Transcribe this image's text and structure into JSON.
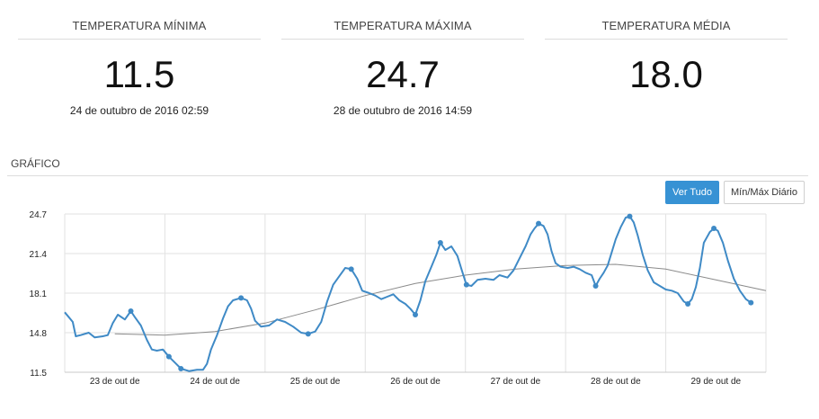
{
  "stats": [
    {
      "title": "TEMPERATURA MÍNIMA",
      "value": "11.5",
      "subtitle": "24 de outubro de 2016 02:59"
    },
    {
      "title": "TEMPERATURA MÁXIMA",
      "value": "24.7",
      "subtitle": "28 de outubro de 2016 14:59"
    },
    {
      "title": "TEMPERATURA MÉDIA",
      "value": "18.0",
      "subtitle": ""
    }
  ],
  "section": {
    "title": "GRÁFICO"
  },
  "buttons": {
    "all": "Ver Tudo",
    "daily": "Mín/Máx Diário"
  },
  "colors": {
    "series": "#3f8ac6",
    "trend": "#8a8a8a",
    "grid": "#e2e2e2",
    "button": "#3792d4"
  },
  "chart_data": {
    "type": "line",
    "grid": true,
    "x_labels": [
      "23 de out de",
      "24 de out de",
      "25 de out de",
      "26 de out de",
      "27 de out de",
      "28 de out de",
      "29 de out de"
    ],
    "y_ticks": [
      "24.7",
      "21.4",
      "18.1",
      "14.8",
      "11.5"
    ],
    "ylim": [
      11.5,
      24.7
    ],
    "xlim": [
      0,
      7
    ],
    "series": [
      {
        "values": [
          [
            0.0,
            16.5
          ],
          [
            0.04,
            16.1
          ],
          [
            0.08,
            15.7
          ],
          [
            0.11,
            14.5
          ],
          [
            0.16,
            14.6
          ],
          [
            0.24,
            14.8
          ],
          [
            0.3,
            14.4
          ],
          [
            0.38,
            14.5
          ],
          [
            0.43,
            14.6
          ],
          [
            0.48,
            15.6
          ],
          [
            0.53,
            16.3
          ],
          [
            0.6,
            15.9
          ],
          [
            0.66,
            16.6
          ],
          [
            0.7,
            16.1
          ],
          [
            0.76,
            15.4
          ],
          [
            0.82,
            14.2
          ],
          [
            0.87,
            13.4
          ],
          [
            0.92,
            13.3
          ],
          [
            0.98,
            13.4
          ],
          [
            1.04,
            12.8
          ],
          [
            1.1,
            12.3
          ],
          [
            1.16,
            11.8
          ],
          [
            1.24,
            11.6
          ],
          [
            1.32,
            11.7
          ],
          [
            1.38,
            11.7
          ],
          [
            1.42,
            12.2
          ],
          [
            1.46,
            13.4
          ],
          [
            1.52,
            14.6
          ],
          [
            1.58,
            16.0
          ],
          [
            1.63,
            17.0
          ],
          [
            1.68,
            17.5
          ],
          [
            1.76,
            17.7
          ],
          [
            1.82,
            17.5
          ],
          [
            1.86,
            16.8
          ],
          [
            1.9,
            15.8
          ],
          [
            1.96,
            15.3
          ],
          [
            2.04,
            15.4
          ],
          [
            2.12,
            15.9
          ],
          [
            2.2,
            15.7
          ],
          [
            2.28,
            15.3
          ],
          [
            2.36,
            14.8
          ],
          [
            2.43,
            14.7
          ],
          [
            2.5,
            14.9
          ],
          [
            2.56,
            15.7
          ],
          [
            2.62,
            17.4
          ],
          [
            2.68,
            18.8
          ],
          [
            2.74,
            19.5
          ],
          [
            2.8,
            20.2
          ],
          [
            2.86,
            20.1
          ],
          [
            2.92,
            19.3
          ],
          [
            2.97,
            18.3
          ],
          [
            3.04,
            18.1
          ],
          [
            3.1,
            17.9
          ],
          [
            3.16,
            17.6
          ],
          [
            3.22,
            17.8
          ],
          [
            3.28,
            18.0
          ],
          [
            3.34,
            17.5
          ],
          [
            3.4,
            17.2
          ],
          [
            3.45,
            16.8
          ],
          [
            3.5,
            16.3
          ],
          [
            3.55,
            17.5
          ],
          [
            3.6,
            19.1
          ],
          [
            3.66,
            20.3
          ],
          [
            3.71,
            21.3
          ],
          [
            3.75,
            22.3
          ],
          [
            3.8,
            21.7
          ],
          [
            3.86,
            22.0
          ],
          [
            3.92,
            21.2
          ],
          [
            3.96,
            20.1
          ],
          [
            4.01,
            18.8
          ],
          [
            4.06,
            18.7
          ],
          [
            4.12,
            19.2
          ],
          [
            4.2,
            19.3
          ],
          [
            4.28,
            19.2
          ],
          [
            4.34,
            19.6
          ],
          [
            4.42,
            19.4
          ],
          [
            4.48,
            20.0
          ],
          [
            4.54,
            21.0
          ],
          [
            4.6,
            22.0
          ],
          [
            4.65,
            23.0
          ],
          [
            4.69,
            23.5
          ],
          [
            4.73,
            23.9
          ],
          [
            4.78,
            23.7
          ],
          [
            4.82,
            23.0
          ],
          [
            4.86,
            21.6
          ],
          [
            4.9,
            20.6
          ],
          [
            4.95,
            20.3
          ],
          [
            5.02,
            20.2
          ],
          [
            5.08,
            20.3
          ],
          [
            5.14,
            20.1
          ],
          [
            5.2,
            19.8
          ],
          [
            5.26,
            19.6
          ],
          [
            5.3,
            18.7
          ],
          [
            5.34,
            19.3
          ],
          [
            5.38,
            19.8
          ],
          [
            5.42,
            20.4
          ],
          [
            5.46,
            21.5
          ],
          [
            5.5,
            22.6
          ],
          [
            5.55,
            23.6
          ],
          [
            5.6,
            24.4
          ],
          [
            5.64,
            24.5
          ],
          [
            5.68,
            24.0
          ],
          [
            5.72,
            22.9
          ],
          [
            5.77,
            21.3
          ],
          [
            5.82,
            20.0
          ],
          [
            5.88,
            19.0
          ],
          [
            5.94,
            18.7
          ],
          [
            6.0,
            18.4
          ],
          [
            6.06,
            18.3
          ],
          [
            6.12,
            18.1
          ],
          [
            6.18,
            17.4
          ],
          [
            6.22,
            17.2
          ],
          [
            6.26,
            17.6
          ],
          [
            6.3,
            18.6
          ],
          [
            6.34,
            20.2
          ],
          [
            6.38,
            22.3
          ],
          [
            6.44,
            23.2
          ],
          [
            6.48,
            23.5
          ],
          [
            6.52,
            23.3
          ],
          [
            6.57,
            22.3
          ],
          [
            6.62,
            20.8
          ],
          [
            6.68,
            19.3
          ],
          [
            6.74,
            18.3
          ],
          [
            6.8,
            17.6
          ],
          [
            6.85,
            17.3
          ]
        ],
        "markers": [
          [
            0.66,
            16.6
          ],
          [
            1.04,
            12.8
          ],
          [
            1.16,
            11.8
          ],
          [
            1.76,
            17.7
          ],
          [
            2.43,
            14.7
          ],
          [
            2.86,
            20.1
          ],
          [
            3.5,
            16.3
          ],
          [
            3.75,
            22.3
          ],
          [
            4.01,
            18.8
          ],
          [
            4.73,
            23.9
          ],
          [
            5.3,
            18.7
          ],
          [
            5.64,
            24.5
          ],
          [
            6.22,
            17.2
          ],
          [
            6.48,
            23.5
          ],
          [
            6.85,
            17.3
          ]
        ]
      },
      {
        "type": "trend",
        "values": [
          [
            0.5,
            14.7
          ],
          [
            1.0,
            14.6
          ],
          [
            1.5,
            14.9
          ],
          [
            2.0,
            15.6
          ],
          [
            2.5,
            16.7
          ],
          [
            3.0,
            17.9
          ],
          [
            3.5,
            18.9
          ],
          [
            4.0,
            19.6
          ],
          [
            4.5,
            20.1
          ],
          [
            5.0,
            20.4
          ],
          [
            5.5,
            20.5
          ],
          [
            6.0,
            20.1
          ],
          [
            6.5,
            19.2
          ],
          [
            7.0,
            18.3
          ]
        ]
      }
    ]
  }
}
